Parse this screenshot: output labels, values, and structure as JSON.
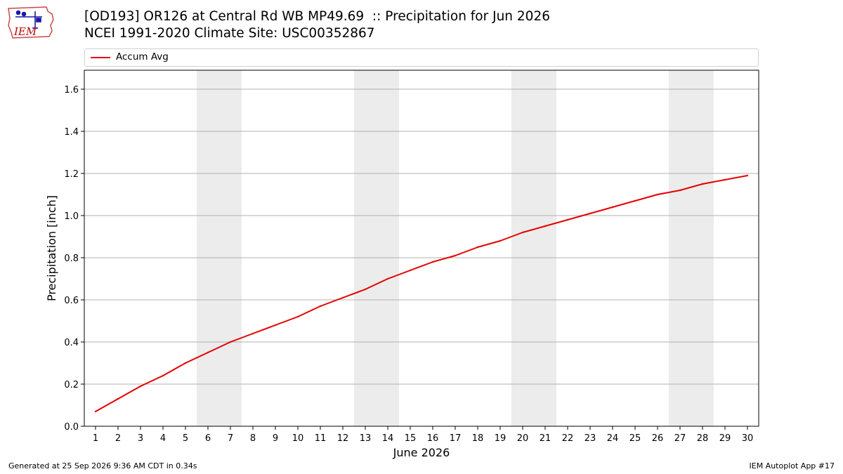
{
  "header": {
    "title_line1": "[OD193] OR126 at Central Rd WB MP49.69  :: Precipitation for Jun 2026",
    "title_line2": "NCEI 1991-2020 Climate Site: USC00352867",
    "logo_text": "IEM"
  },
  "footer": {
    "generated": "Generated at 25 Sep 2026 9:36 AM CDT in 0.34s",
    "app": "IEM Autoplot App #17"
  },
  "colors": {
    "series": "#e60000",
    "weekend_band": "#ececec",
    "grid": "#b0b0b0",
    "logo_outline": "#c84a4a",
    "logo_text": "#c00000",
    "logo_icon": "#1a1aa8"
  },
  "chart_data": {
    "type": "line",
    "title": "[OD193] OR126 at Central Rd WB MP49.69  :: Precipitation for Jun 2026",
    "subtitle": "NCEI 1991-2020 Climate Site: USC00352867",
    "xlabel": "June 2026",
    "ylabel": "Precipitation [inch]",
    "x": [
      1,
      2,
      3,
      4,
      5,
      6,
      7,
      8,
      9,
      10,
      11,
      12,
      13,
      14,
      15,
      16,
      17,
      18,
      19,
      20,
      21,
      22,
      23,
      24,
      25,
      26,
      27,
      28,
      29,
      30
    ],
    "xlim": [
      0.5,
      30.5
    ],
    "ylim": [
      0,
      1.69
    ],
    "yticks": [
      0.0,
      0.2,
      0.4,
      0.6,
      0.8,
      1.0,
      1.2,
      1.4,
      1.6
    ],
    "ytick_labels": [
      "0.0",
      "0.2",
      "0.4",
      "0.6",
      "0.8",
      "1.0",
      "1.2",
      "1.4",
      "1.6"
    ],
    "grid": "horizontal",
    "legend_position": "top, above plot",
    "weekend_bands": [
      [
        5.5,
        7.5
      ],
      [
        12.5,
        14.5
      ],
      [
        19.5,
        21.5
      ],
      [
        26.5,
        28.5
      ]
    ],
    "series": [
      {
        "name": "Accum Avg",
        "values": [
          0.07,
          0.13,
          0.19,
          0.24,
          0.3,
          0.35,
          0.4,
          0.44,
          0.48,
          0.52,
          0.57,
          0.61,
          0.65,
          0.7,
          0.74,
          0.78,
          0.81,
          0.85,
          0.88,
          0.92,
          0.95,
          0.98,
          1.01,
          1.04,
          1.07,
          1.1,
          1.12,
          1.15,
          1.17,
          1.19
        ]
      }
    ]
  }
}
